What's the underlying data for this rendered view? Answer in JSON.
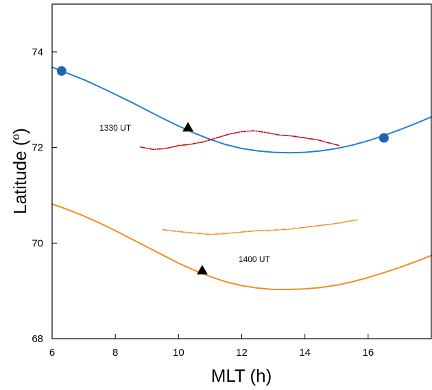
{
  "chart_data": {
    "type": "line",
    "xlabel": "MLT (h)",
    "ylabel": "Latitude ( o)",
    "ylabel_main": "Latitude (",
    "ylabel_sup": "o",
    "ylabel_end": ")",
    "xlim": [
      6,
      18
    ],
    "ylim": [
      68,
      75
    ],
    "xticks": [
      6,
      8,
      10,
      12,
      14,
      16
    ],
    "yticks": [
      68,
      70,
      72,
      74
    ],
    "grid": false,
    "series": [
      {
        "color": "#1f7fd6",
        "style": "solid",
        "x": [
          6.0,
          6.5,
          7,
          7.5,
          8,
          8.5,
          9,
          9.5,
          10,
          10.5,
          11,
          11.5,
          12,
          12.5,
          13,
          13.5,
          14,
          14.5,
          15,
          15.5,
          16,
          16.5,
          17,
          17.5,
          18
        ],
        "y": [
          73.68,
          73.55,
          73.42,
          73.27,
          73.11,
          72.95,
          72.78,
          72.61,
          72.45,
          72.3,
          72.17,
          72.06,
          71.98,
          71.93,
          71.9,
          71.89,
          71.9,
          71.93,
          71.98,
          72.05,
          72.14,
          72.25,
          72.37,
          72.5,
          72.64
        ]
      },
      {
        "color": "#f28b1e",
        "style": "solid",
        "x": [
          6.0,
          6.5,
          7,
          7.5,
          8,
          8.5,
          9,
          9.5,
          10,
          10.5,
          11,
          11.5,
          12,
          12.5,
          13,
          13.5,
          14,
          14.5,
          15,
          15.5,
          16,
          16.5,
          17,
          17.5,
          18
        ],
        "y": [
          70.82,
          70.7,
          70.57,
          70.42,
          70.26,
          70.09,
          69.92,
          69.75,
          69.58,
          69.43,
          69.3,
          69.19,
          69.11,
          69.06,
          69.03,
          69.03,
          69.04,
          69.07,
          69.12,
          69.19,
          69.28,
          69.38,
          69.49,
          69.61,
          69.74
        ]
      },
      {
        "color": "#cc0000",
        "style": "dashdot",
        "x": [
          8.8,
          9.2,
          9.6,
          10.0,
          10.4,
          10.8,
          11.2,
          11.6,
          12.0,
          12.4,
          12.8,
          13.2,
          13.6,
          14.0,
          14.4,
          14.8,
          15.1
        ],
        "y": [
          72.01,
          71.96,
          71.98,
          72.04,
          72.07,
          72.12,
          72.2,
          72.28,
          72.33,
          72.35,
          72.31,
          72.26,
          72.24,
          72.2,
          72.16,
          72.09,
          72.04
        ]
      },
      {
        "color": "#f28b1e",
        "style": "dashdot",
        "x": [
          9.5,
          10.0,
          10.5,
          11.0,
          11.5,
          12.0,
          12.5,
          13.0,
          13.5,
          14.0,
          14.5,
          15.0,
          15.5,
          15.7
        ],
        "y": [
          70.28,
          70.24,
          70.21,
          70.18,
          70.2,
          70.23,
          70.26,
          70.27,
          70.29,
          70.33,
          70.37,
          70.41,
          70.47,
          70.49
        ]
      }
    ],
    "markers": [
      {
        "shape": "circle",
        "x": 6.3,
        "y": 73.6,
        "color": "#1f62b8"
      },
      {
        "shape": "circle",
        "x": 16.5,
        "y": 72.2,
        "color": "#1f62b8"
      },
      {
        "shape": "triangle",
        "x": 10.3,
        "y": 72.42,
        "color": "#000000"
      },
      {
        "shape": "triangle",
        "x": 10.75,
        "y": 69.43,
        "color": "#000000"
      }
    ],
    "annotations": [
      {
        "text": "1330 UT",
        "x": 7.5,
        "y": 72.35
      },
      {
        "text": "1400 UT",
        "x": 11.9,
        "y": 69.6
      }
    ]
  }
}
